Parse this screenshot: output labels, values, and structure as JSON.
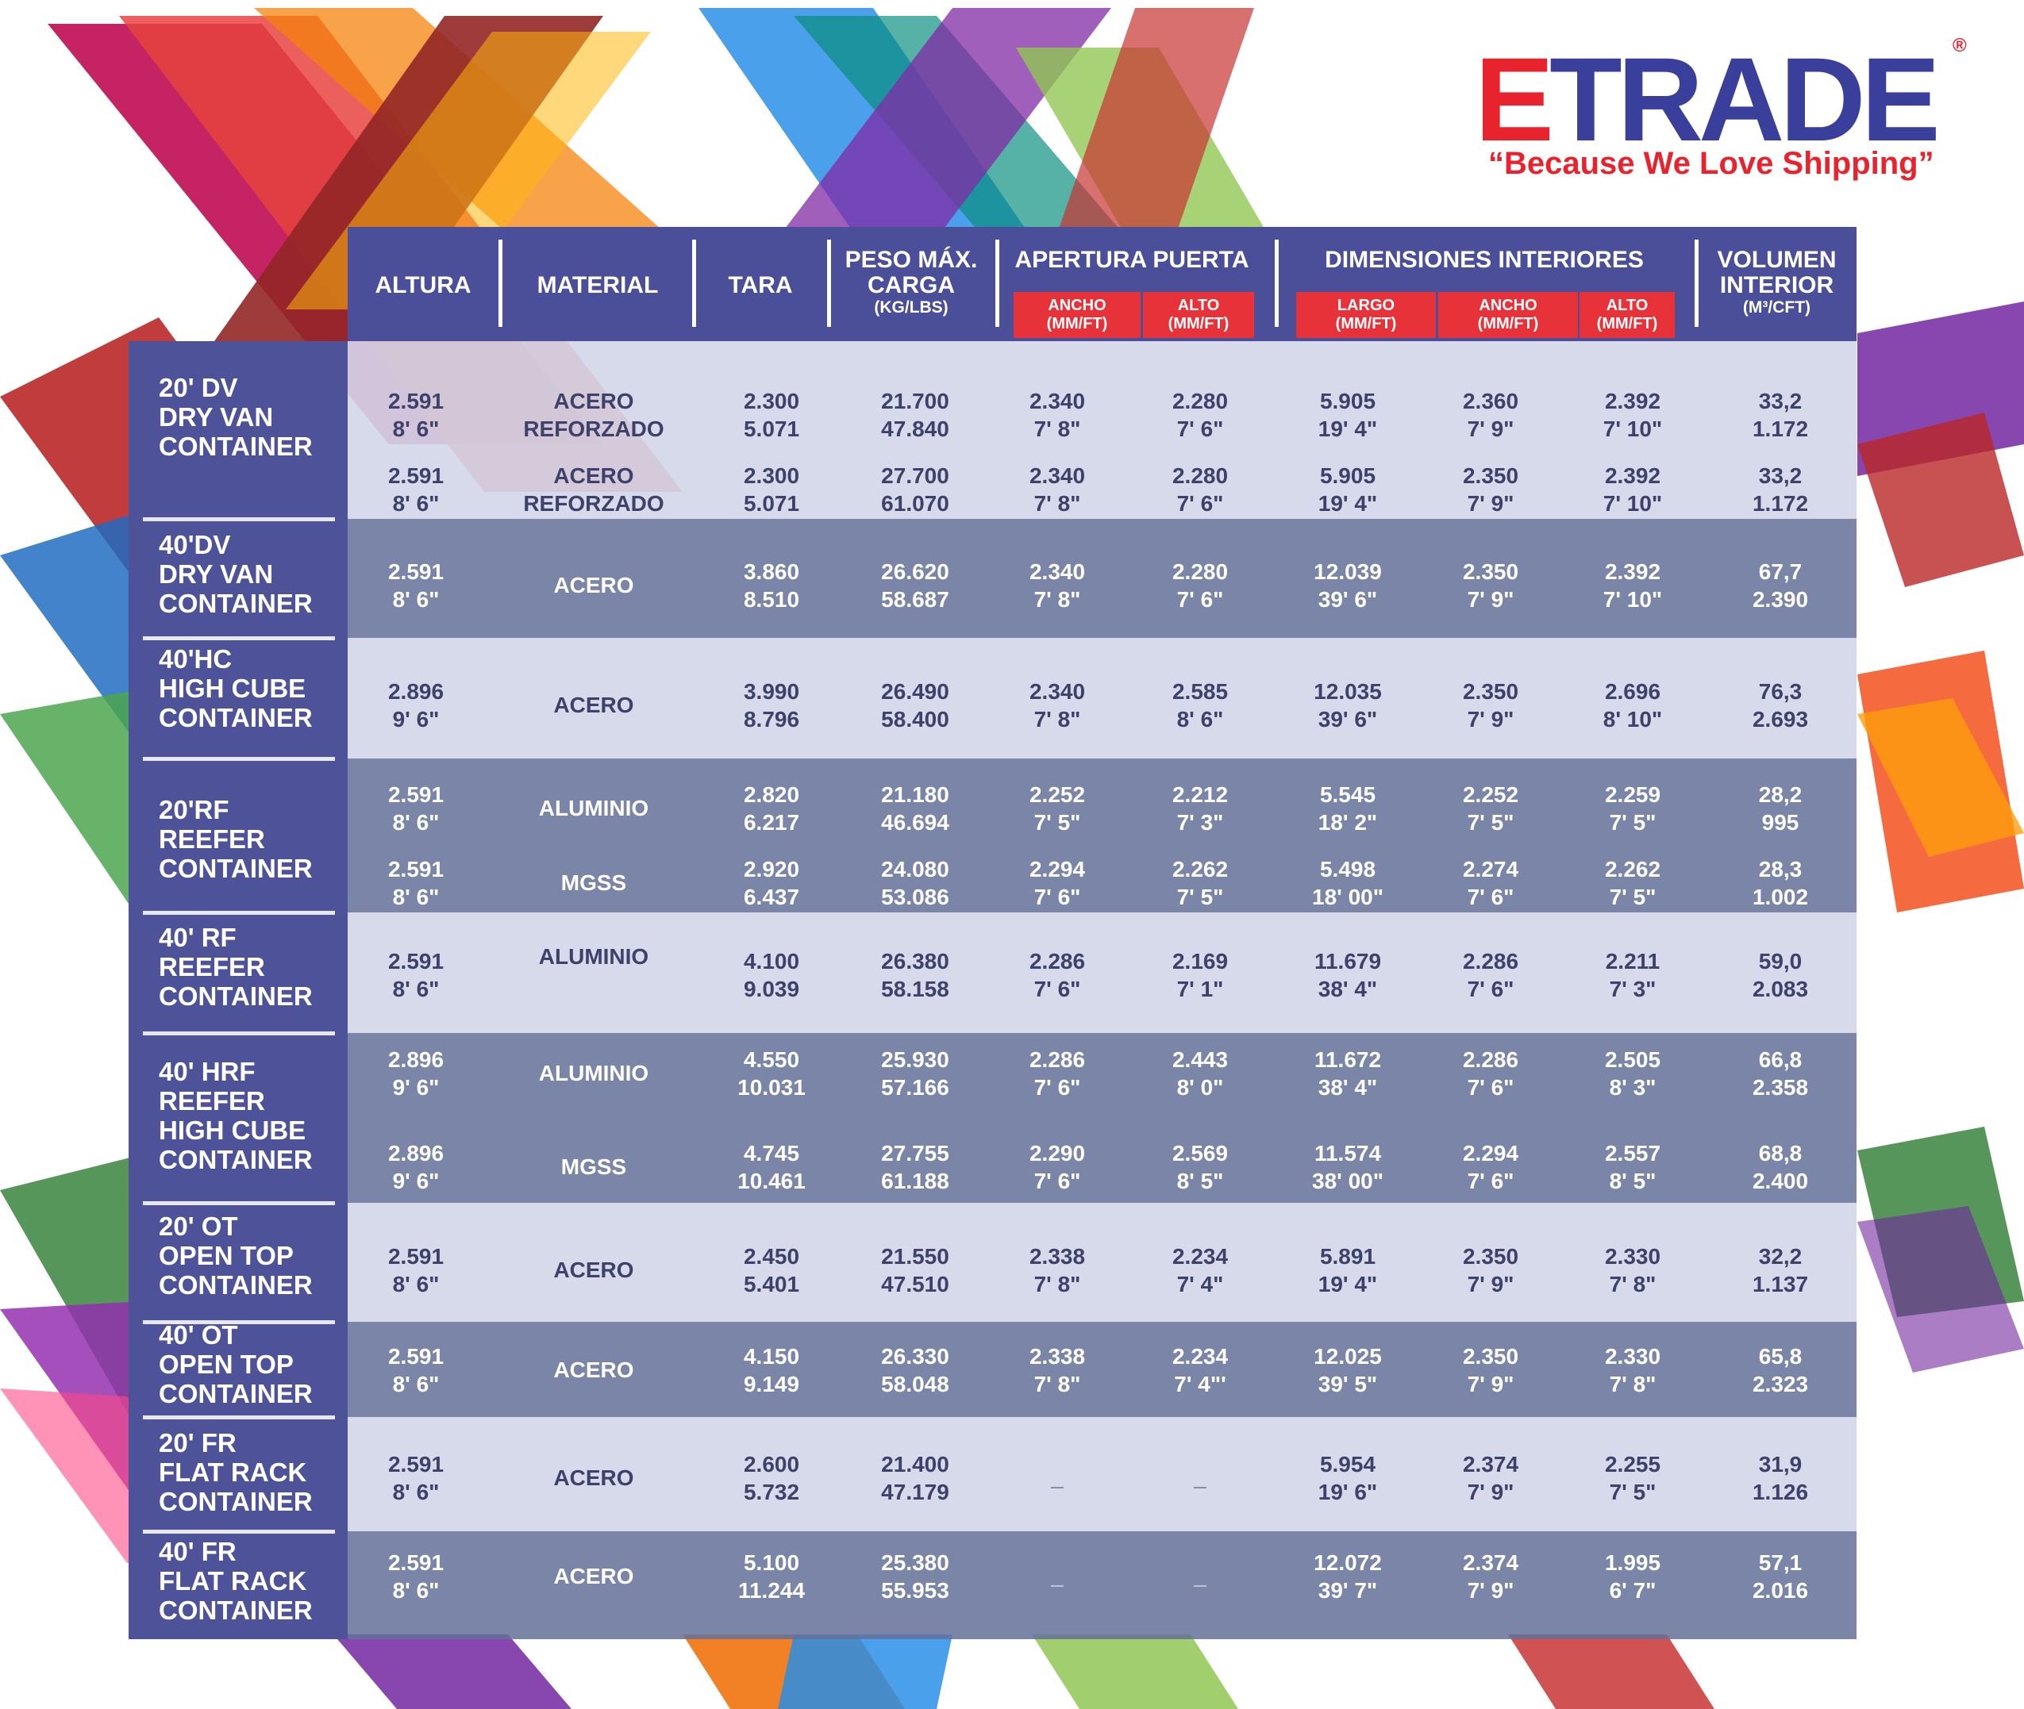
{
  "brand": {
    "logo_text": "TRADE",
    "logo_mark": "E",
    "registered": "®",
    "tagline": "“Because We Love Shipping”",
    "colors": {
      "navy": "#3a3f9c",
      "red": "#e8232d"
    }
  },
  "header": {
    "columns": [
      {
        "key": "altura",
        "label": "ALTURA"
      },
      {
        "key": "material",
        "label": "MATERIAL"
      },
      {
        "key": "tara",
        "label": "TARA"
      },
      {
        "key": "peso",
        "label": "PESO MÁX. CARGA",
        "unit": "(KG/LBS)"
      },
      {
        "key": "apertura",
        "label": "APERTURA PUERTA"
      },
      {
        "key": "dimensiones",
        "label": "DIMENSIONES INTERIORES"
      },
      {
        "key": "volumen",
        "label": "VOLUMEN INTERIOR",
        "unit": "(M³/CFT)"
      }
    ],
    "subcolumns": {
      "apertura_ancho": {
        "label": "ANCHO",
        "unit": "(MM/FT)"
      },
      "apertura_alto": {
        "label": "ALTO",
        "unit": "(MM/FT)"
      },
      "dim_largo": {
        "label": "LARGO",
        "unit": "(MM/FT)"
      },
      "dim_ancho": {
        "label": "ANCHO",
        "unit": "(MM/FT)"
      },
      "dim_alto": {
        "label": "ALTO",
        "unit": "(MM/FT)"
      }
    }
  },
  "containers": [
    {
      "lines": [
        "20' DV",
        "DRY VAN",
        "CONTAINER"
      ],
      "rows": [
        {
          "altura": [
            "2.591",
            "8' 6\""
          ],
          "material": [
            "ACERO",
            "REFORZADO"
          ],
          "tara": [
            "2.300",
            "5.071"
          ],
          "peso": [
            "21.700",
            "47.840"
          ],
          "apertura_ancho": [
            "2.340",
            "7' 8\""
          ],
          "apertura_alto": [
            "2.280",
            "7' 6\""
          ],
          "largo": [
            "5.905",
            "19' 4\""
          ],
          "ancho": [
            "2.360",
            "7' 9\""
          ],
          "alto": [
            "2.392",
            "7' 10\""
          ],
          "volumen": [
            "33,2",
            "1.172"
          ]
        },
        {
          "altura": [
            "2.591",
            "8' 6\""
          ],
          "material": [
            "ACERO",
            "REFORZADO"
          ],
          "tara": [
            "2.300",
            "5.071"
          ],
          "peso": [
            "27.700",
            "61.070"
          ],
          "apertura_ancho": [
            "2.340",
            "7' 8\""
          ],
          "apertura_alto": [
            "2.280",
            "7' 6\""
          ],
          "largo": [
            "5.905",
            "19' 4\""
          ],
          "ancho": [
            "2.350",
            "7' 9\""
          ],
          "alto": [
            "2.392",
            "7' 10\""
          ],
          "volumen": [
            "33,2",
            "1.172"
          ]
        }
      ]
    },
    {
      "lines": [
        "40'DV",
        "DRY VAN",
        "CONTAINER"
      ],
      "rows": [
        {
          "altura": [
            "2.591",
            "8' 6\""
          ],
          "material": [
            "ACERO"
          ],
          "tara": [
            "3.860",
            "8.510"
          ],
          "peso": [
            "26.620",
            "58.687"
          ],
          "apertura_ancho": [
            "2.340",
            "7' 8\""
          ],
          "apertura_alto": [
            "2.280",
            "7' 6\""
          ],
          "largo": [
            "12.039",
            "39' 6\""
          ],
          "ancho": [
            "2.350",
            "7' 9\""
          ],
          "alto": [
            "2.392",
            "7' 10\""
          ],
          "volumen": [
            "67,7",
            "2.390"
          ]
        }
      ]
    },
    {
      "lines": [
        "40'HC",
        "HIGH CUBE",
        "CONTAINER"
      ],
      "rows": [
        {
          "altura": [
            "2.896",
            "9' 6\""
          ],
          "material": [
            "ACERO"
          ],
          "tara": [
            "3.990",
            "8.796"
          ],
          "peso": [
            "26.490",
            "58.400"
          ],
          "apertura_ancho": [
            "2.340",
            "7' 8\""
          ],
          "apertura_alto": [
            "2.585",
            "8' 6\""
          ],
          "largo": [
            "12.035",
            "39' 6\""
          ],
          "ancho": [
            "2.350",
            "7' 9\""
          ],
          "alto": [
            "2.696",
            "8' 10\""
          ],
          "volumen": [
            "76,3",
            "2.693"
          ]
        }
      ]
    },
    {
      "lines": [
        "20'RF",
        "REEFER",
        "CONTAINER"
      ],
      "rows": [
        {
          "altura": [
            "2.591",
            "8' 6\""
          ],
          "material": [
            "ALUMINIO"
          ],
          "tara": [
            "2.820",
            "6.217"
          ],
          "peso": [
            "21.180",
            "46.694"
          ],
          "apertura_ancho": [
            "2.252",
            "7' 5\""
          ],
          "apertura_alto": [
            "2.212",
            "7' 3\""
          ],
          "largo": [
            "5.545",
            "18' 2\""
          ],
          "ancho": [
            "2.252",
            "7' 5\""
          ],
          "alto": [
            "2.259",
            "7' 5\""
          ],
          "volumen": [
            "28,2",
            "995"
          ]
        },
        {
          "altura": [
            "2.591",
            "8' 6\""
          ],
          "material": [
            "MGSS"
          ],
          "tara": [
            "2.920",
            "6.437"
          ],
          "peso": [
            "24.080",
            "53.086"
          ],
          "apertura_ancho": [
            "2.294",
            "7' 6\""
          ],
          "apertura_alto": [
            "2.262",
            "7' 5\""
          ],
          "largo": [
            "5.498",
            "18' 00\""
          ],
          "ancho": [
            "2.274",
            "7' 6\""
          ],
          "alto": [
            "2.262",
            "7' 5\""
          ],
          "volumen": [
            "28,3",
            "1.002"
          ]
        }
      ]
    },
    {
      "lines": [
        "40' RF",
        "REEFER",
        "CONTAINER"
      ],
      "rows": [
        {
          "altura": [
            "2.591",
            "8' 6\""
          ],
          "material": [
            "ALUMINIO"
          ],
          "tara": [
            "4.100",
            "9.039"
          ],
          "peso": [
            "26.380",
            "58.158"
          ],
          "apertura_ancho": [
            "2.286",
            "7' 6\""
          ],
          "apertura_alto": [
            "2.169",
            "7' 1\""
          ],
          "largo": [
            "11.679",
            "38' 4\""
          ],
          "ancho": [
            "2.286",
            "7' 6\""
          ],
          "alto": [
            "2.211",
            "7' 3\""
          ],
          "volumen": [
            "59,0",
            "2.083"
          ]
        }
      ]
    },
    {
      "lines": [
        "40' HRF",
        "REEFER",
        "HIGH CUBE",
        "CONTAINER"
      ],
      "rows": [
        {
          "altura": [
            "2.896",
            "9' 6\""
          ],
          "material": [
            "ALUMINIO"
          ],
          "tara": [
            "4.550",
            "10.031"
          ],
          "peso": [
            "25.930",
            "57.166"
          ],
          "apertura_ancho": [
            "2.286",
            "7' 6\""
          ],
          "apertura_alto": [
            "2.443",
            "8' 0\""
          ],
          "largo": [
            "11.672",
            "38' 4\""
          ],
          "ancho": [
            "2.286",
            "7' 6\""
          ],
          "alto": [
            "2.505",
            "8' 3\""
          ],
          "volumen": [
            "66,8",
            "2.358"
          ]
        },
        {
          "altura": [
            "2.896",
            "9' 6\""
          ],
          "material": [
            "MGSS"
          ],
          "tara": [
            "4.745",
            "10.461"
          ],
          "peso": [
            "27.755",
            "61.188"
          ],
          "apertura_ancho": [
            "2.290",
            "7' 6\""
          ],
          "apertura_alto": [
            "2.569",
            "8' 5\""
          ],
          "largo": [
            "11.574",
            "38' 00\""
          ],
          "ancho": [
            "2.294",
            "7' 6\""
          ],
          "alto": [
            "2.557",
            "8' 5\""
          ],
          "volumen": [
            "68,8",
            "2.400"
          ]
        }
      ]
    },
    {
      "lines": [
        "20' OT",
        "OPEN TOP",
        "CONTAINER"
      ],
      "rows": [
        {
          "altura": [
            "2.591",
            "8' 6\""
          ],
          "material": [
            "ACERO"
          ],
          "tara": [
            "2.450",
            "5.401"
          ],
          "peso": [
            "21.550",
            "47.510"
          ],
          "apertura_ancho": [
            "2.338",
            "7' 8\""
          ],
          "apertura_alto": [
            "2.234",
            "7' 4\""
          ],
          "largo": [
            "5.891",
            "19' 4\""
          ],
          "ancho": [
            "2.350",
            "7' 9\""
          ],
          "alto": [
            "2.330",
            "7' 8\""
          ],
          "volumen": [
            "32,2",
            "1.137"
          ]
        }
      ]
    },
    {
      "lines": [
        "40' OT",
        "OPEN TOP",
        "CONTAINER"
      ],
      "rows": [
        {
          "altura": [
            "2.591",
            "8' 6\""
          ],
          "material": [
            "ACERO"
          ],
          "tara": [
            "4.150",
            "9.149"
          ],
          "peso": [
            "26.330",
            "58.048"
          ],
          "apertura_ancho": [
            "2.338",
            "7' 8\""
          ],
          "apertura_alto": [
            "2.234",
            "7' 4\"'"
          ],
          "largo": [
            "12.025",
            "39' 5\""
          ],
          "ancho": [
            "2.350",
            "7' 9\""
          ],
          "alto": [
            "2.330",
            "7' 8\""
          ],
          "volumen": [
            "65,8",
            "2.323"
          ]
        }
      ]
    },
    {
      "lines": [
        "20' FR",
        "FLAT RACK",
        "CONTAINER"
      ],
      "rows": [
        {
          "altura": [
            "2.591",
            "8' 6\""
          ],
          "material": [
            "ACERO"
          ],
          "tara": [
            "2.600",
            "5.732"
          ],
          "peso": [
            "21.400",
            "47.179"
          ],
          "apertura_ancho": [
            "_"
          ],
          "apertura_alto": [
            "_"
          ],
          "largo": [
            "5.954",
            "19' 6\""
          ],
          "ancho": [
            "2.374",
            "7' 9\""
          ],
          "alto": [
            "2.255",
            "7' 5\""
          ],
          "volumen": [
            "31,9",
            "1.126"
          ]
        }
      ]
    },
    {
      "lines": [
        "40' FR",
        "FLAT RACK",
        "CONTAINER"
      ],
      "rows": [
        {
          "altura": [
            "2.591",
            "8' 6\""
          ],
          "material": [
            "ACERO"
          ],
          "tara": [
            "5.100",
            "11.244"
          ],
          "peso": [
            "25.380",
            "55.953"
          ],
          "apertura_ancho": [
            "_"
          ],
          "apertura_alto": [
            "_"
          ],
          "largo": [
            "12.072",
            "39' 7\""
          ],
          "ancho": [
            "2.374",
            "7' 9\""
          ],
          "alto": [
            "1.995",
            "6' 7\""
          ],
          "volumen": [
            "57,1",
            "2.016"
          ]
        }
      ]
    }
  ]
}
